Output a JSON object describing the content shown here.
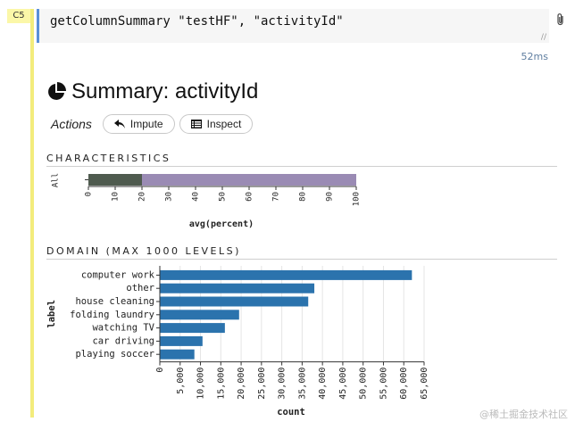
{
  "cell": {
    "label": "C5",
    "code": "getColumnSummary \"testHF\", \"activityId\"",
    "timing": "52ms"
  },
  "summary": {
    "title": "Summary: activityId"
  },
  "actions": {
    "label": "Actions",
    "impute_label": "Impute",
    "inspect_label": "Inspect"
  },
  "characteristics": {
    "title": "CHARACTERISTICS"
  },
  "domain": {
    "title": "DOMAIN (MAX 1000 LEVELS)"
  },
  "watermark": "@稀土掘金技术社区",
  "colors": {
    "accent": "#5a8fd8",
    "bar_blue": "#2b73ad",
    "bar_dark": "#4f5b4f",
    "bar_purple": "#9a8bb4",
    "cell_yellow": "#f3ec7c"
  },
  "chart_data": [
    {
      "type": "bar",
      "orientation": "horizontal",
      "categories": [
        "All"
      ],
      "series": [
        {
          "values": [
            20
          ]
        },
        {
          "values": [
            80
          ]
        }
      ],
      "xlabel": "avg(percent)",
      "xlim": [
        0,
        100
      ],
      "xticks": [
        0,
        10,
        20,
        30,
        40,
        50,
        60,
        70,
        80,
        90,
        100
      ],
      "stacked": true
    },
    {
      "type": "bar",
      "orientation": "horizontal",
      "categories": [
        "computer work",
        "other",
        "house cleaning",
        "folding laundry",
        "watching TV",
        "car driving",
        "playing soccer"
      ],
      "values": [
        62000,
        38000,
        36500,
        19500,
        16000,
        10500,
        8500
      ],
      "xlabel": "count",
      "ylabel": "label",
      "xlim": [
        0,
        65000
      ],
      "xticks": [
        "0",
        "5,000",
        "10,000",
        "15,000",
        "20,000",
        "25,000",
        "30,000",
        "35,000",
        "40,000",
        "45,000",
        "50,000",
        "55,000",
        "60,000",
        "65,000"
      ],
      "grid": true
    }
  ]
}
